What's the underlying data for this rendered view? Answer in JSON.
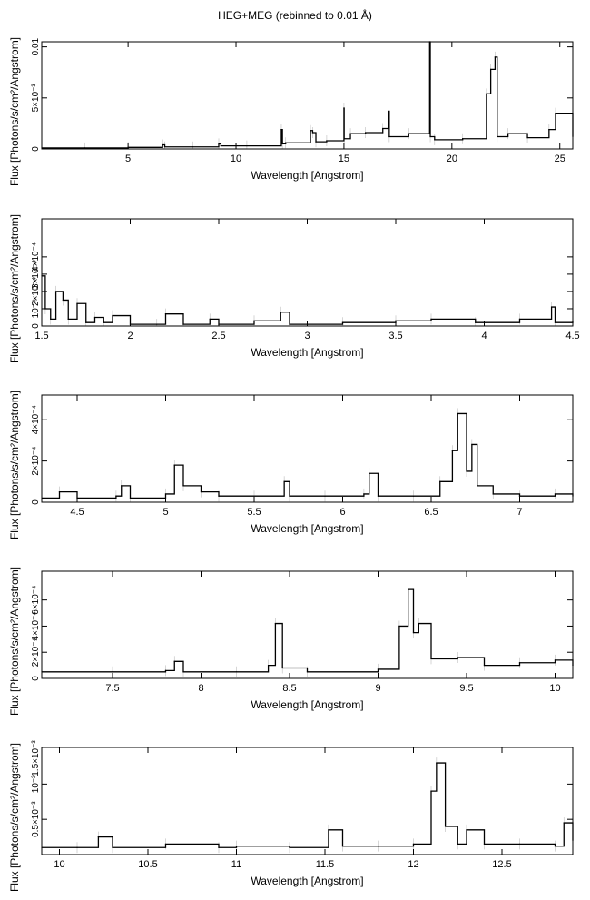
{
  "title": "HEG+MEG (rebinned to 0.01 Å)",
  "chart_data": [
    {
      "type": "line",
      "xlabel": "Wavelength [Angstrom]",
      "ylabel": "Flux [Photons/s/cm²/Angstrom]",
      "xlim": [
        1.0,
        25.6
      ],
      "ylim": [
        0,
        0.0105
      ],
      "xticks": [
        5,
        10,
        15,
        20,
        25
      ],
      "xtick_labels": [
        "5",
        "10",
        "15",
        "20",
        "25"
      ],
      "yticks": [
        0,
        0.005,
        0.01
      ],
      "ytick_labels": [
        "0",
        "5×10⁻³",
        "0.01"
      ],
      "x": [
        1.0,
        3.0,
        5.0,
        6.6,
        6.7,
        8.0,
        9.2,
        9.3,
        10.5,
        12.1,
        12.15,
        12.3,
        13.45,
        13.55,
        13.7,
        14.2,
        15.0,
        15.01,
        15.3,
        16.0,
        16.8,
        17.05,
        17.1,
        18.0,
        18.97,
        19.0,
        19.2,
        20.5,
        21.6,
        21.8,
        22.0,
        22.1,
        22.6,
        23.5,
        24.5,
        24.8,
        25.6
      ],
      "y": [
        0.0001,
        0.0001,
        0.00015,
        0.0004,
        0.0002,
        0.0002,
        0.0005,
        0.0003,
        0.0003,
        0.0019,
        0.0005,
        0.0006,
        0.0018,
        0.0016,
        0.0007,
        0.0008,
        0.004,
        0.001,
        0.0015,
        0.0016,
        0.002,
        0.0037,
        0.0012,
        0.0015,
        0.0105,
        0.0012,
        0.0009,
        0.001,
        0.0054,
        0.0078,
        0.009,
        0.0012,
        0.0015,
        0.0011,
        0.0019,
        0.0035,
        0.0012
      ]
    },
    {
      "type": "line",
      "xlabel": "Wavelength [Angstrom]",
      "ylabel": "Flux [Photons/s/cm²/Angstrom]",
      "xlim": [
        1.5,
        4.5
      ],
      "ylim": [
        0,
        0.00062
      ],
      "xticks": [
        1.5,
        2,
        2.5,
        3,
        3.5,
        4,
        4.5
      ],
      "xtick_labels": [
        "1.5",
        "2",
        "2.5",
        "3",
        "3.5",
        "4",
        "4.5"
      ],
      "yticks": [
        0,
        0.0001,
        0.0002,
        0.0003,
        0.0004
      ],
      "ytick_labels": [
        "0",
        "10⁻⁴",
        "2×10⁻⁴",
        "3×10⁻⁴",
        "4×10⁻⁴"
      ],
      "x": [
        1.5,
        1.52,
        1.55,
        1.58,
        1.62,
        1.65,
        1.7,
        1.75,
        1.8,
        1.85,
        1.9,
        2.0,
        2.15,
        2.2,
        2.3,
        2.45,
        2.5,
        2.7,
        2.85,
        2.9,
        3.2,
        3.5,
        3.7,
        3.95,
        4.2,
        4.38,
        4.4,
        4.5
      ],
      "y": [
        0.00029,
        0.0001,
        4e-05,
        0.0002,
        0.00015,
        4e-05,
        0.00013,
        2e-05,
        5e-05,
        2e-05,
        6e-05,
        1e-05,
        1e-05,
        7e-05,
        1e-05,
        4e-05,
        1e-05,
        3e-05,
        8e-05,
        1e-05,
        2e-05,
        3e-05,
        4e-05,
        2e-05,
        4e-05,
        0.00011,
        2e-05,
        3e-05
      ]
    },
    {
      "type": "line",
      "xlabel": "Wavelength [Angstrom]",
      "ylabel": "Flux [Photons/s/cm²/Angstrom]",
      "xlim": [
        4.3,
        7.3
      ],
      "ylim": [
        0,
        0.00052
      ],
      "xticks": [
        4.5,
        5,
        5.5,
        6,
        6.5,
        7
      ],
      "xtick_labels": [
        "4.5",
        "5",
        "5.5",
        "6",
        "6.5",
        "7"
      ],
      "yticks": [
        0,
        0.0002,
        0.0004
      ],
      "ytick_labels": [
        "0",
        "2×10⁻⁴",
        "4×10⁻⁴"
      ],
      "x": [
        4.3,
        4.4,
        4.5,
        4.72,
        4.75,
        4.8,
        5.0,
        5.05,
        5.1,
        5.2,
        5.3,
        5.5,
        5.67,
        5.7,
        5.9,
        6.12,
        6.15,
        6.2,
        6.4,
        6.55,
        6.62,
        6.65,
        6.7,
        6.73,
        6.76,
        6.85,
        7.0,
        7.2,
        7.3
      ],
      "y": [
        2e-05,
        5e-05,
        2e-05,
        3e-05,
        8e-05,
        2e-05,
        4e-05,
        0.00018,
        8e-05,
        5e-05,
        3e-05,
        3e-05,
        0.0001,
        3e-05,
        3e-05,
        4e-05,
        0.00014,
        3e-05,
        3e-05,
        0.0001,
        0.00025,
        0.00043,
        0.00015,
        0.00028,
        8e-05,
        4e-05,
        3e-05,
        4e-05,
        3e-05
      ]
    },
    {
      "type": "line",
      "xlabel": "Wavelength [Angstrom]",
      "ylabel": "Flux [Photons/s/cm²/Angstrom]",
      "xlim": [
        7.1,
        10.1
      ],
      "ylim": [
        0,
        0.00082
      ],
      "xticks": [
        7.5,
        8,
        8.5,
        9,
        9.5,
        10
      ],
      "xtick_labels": [
        "7.5",
        "8",
        "8.5",
        "9",
        "9.5",
        "10"
      ],
      "yticks": [
        0,
        0.0002,
        0.0004,
        0.0006
      ],
      "ytick_labels": [
        "0",
        "2×10⁻⁴",
        "4×10⁻⁴",
        "6×10⁻⁴"
      ],
      "x": [
        7.1,
        7.5,
        7.8,
        7.85,
        7.9,
        8.2,
        8.38,
        8.42,
        8.46,
        8.6,
        9.0,
        9.12,
        9.17,
        9.2,
        9.23,
        9.3,
        9.45,
        9.6,
        9.8,
        10.0,
        10.1
      ],
      "y": [
        5e-05,
        5e-05,
        6e-05,
        0.00013,
        5e-05,
        5e-05,
        0.0001,
        0.00042,
        8e-05,
        5e-05,
        7e-05,
        0.0004,
        0.00068,
        0.00035,
        0.00042,
        0.00015,
        0.00016,
        0.0001,
        0.00012,
        0.00014,
        0.0001
      ]
    },
    {
      "type": "line",
      "xlabel": "Wavelength [Angstrom]",
      "ylabel": "Flux [Photons/s/cm²/Angstrom]",
      "xlim": [
        9.9,
        12.9
      ],
      "ylim": [
        0,
        0.00152
      ],
      "xticks": [
        10,
        10.5,
        11,
        11.5,
        12,
        12.5
      ],
      "xtick_labels": [
        "10",
        "10.5",
        "11",
        "11.5",
        "12",
        "12.5"
      ],
      "yticks": [
        0.0005,
        0.001
      ],
      "ytick_labels": [
        "0.5×10⁻³",
        "10⁻³"
      ],
      "extra_tick_label": "1.5×10⁻³",
      "x": [
        9.9,
        10.1,
        10.22,
        10.3,
        10.6,
        10.9,
        11.0,
        11.3,
        11.52,
        11.6,
        11.8,
        12.0,
        12.1,
        12.13,
        12.18,
        12.25,
        12.3,
        12.4,
        12.6,
        12.8,
        12.85,
        12.9
      ],
      "y": [
        0.0001,
        0.0001,
        0.00025,
        0.0001,
        0.00015,
        0.0001,
        0.00012,
        0.0001,
        0.00035,
        0.00012,
        0.00012,
        0.00015,
        0.0009,
        0.0013,
        0.0004,
        0.00015,
        0.00035,
        0.00015,
        0.00015,
        0.00012,
        0.00045,
        0.0002
      ]
    }
  ]
}
